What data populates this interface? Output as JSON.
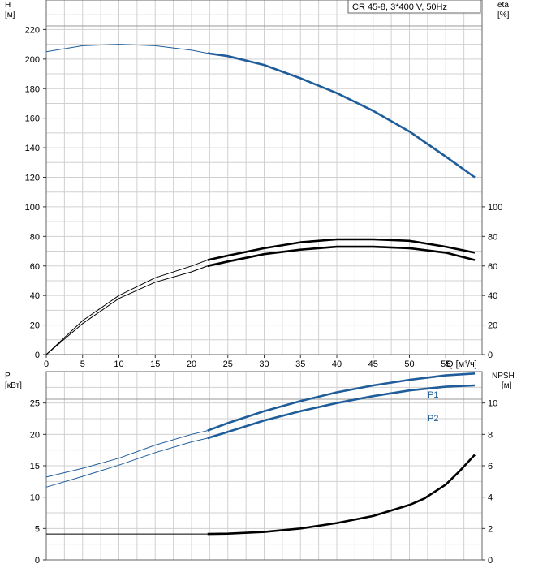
{
  "title": "CR 45-8, 3*400 V, 50Hz",
  "colors": {
    "blue": "#1f5d9a",
    "black": "#000000",
    "grid": "#d0d0d0"
  },
  "chart_data": [
    {
      "type": "line",
      "panel": "top",
      "xlabel": "Q [м³/ч]",
      "xlim": [
        0,
        60
      ],
      "x_ticks": [
        0,
        5,
        10,
        15,
        20,
        25,
        30,
        35,
        40,
        45,
        50,
        55
      ],
      "ylabel_left": "H",
      "ylabel_left_unit": "[м]",
      "ylim_left": [
        0,
        240
      ],
      "y_ticks_left": [
        0,
        20,
        40,
        60,
        80,
        100,
        120,
        140,
        160,
        180,
        200,
        220
      ],
      "ylabel_right": "eta",
      "ylabel_right_unit": "[%]",
      "ylim_right": [
        0,
        240
      ],
      "y_ticks_right": [
        0,
        20,
        40,
        60,
        80,
        100
      ],
      "grid": true,
      "series": [
        {
          "id": "H",
          "axis": "left",
          "color": "blue",
          "x": [
            0,
            5,
            10,
            15,
            20,
            22.2,
            25,
            30,
            35,
            40,
            45,
            50,
            55,
            59
          ],
          "y": [
            205,
            209,
            210,
            209,
            206,
            204,
            202,
            196,
            187,
            177,
            165,
            151,
            134,
            120
          ],
          "bold_from": 22.2
        },
        {
          "id": "eta_upper",
          "axis": "right",
          "color": "black",
          "x": [
            0,
            5,
            10,
            15,
            20,
            22.2,
            25,
            30,
            35,
            40,
            45,
            50,
            55,
            59
          ],
          "y": [
            0,
            23,
            40,
            52,
            60,
            64,
            67,
            72,
            76,
            78,
            78,
            77,
            73,
            69
          ],
          "bold_from": 22.2
        },
        {
          "id": "eta_lower",
          "axis": "right",
          "color": "black",
          "x": [
            0,
            5,
            10,
            15,
            20,
            22.2,
            25,
            30,
            35,
            40,
            45,
            50,
            55,
            59
          ],
          "y": [
            0,
            21,
            38,
            49,
            56,
            60,
            63,
            68,
            71,
            73,
            73,
            72,
            69,
            64
          ],
          "bold_from": 22.2
        }
      ]
    },
    {
      "type": "line",
      "panel": "bottom",
      "xlim": [
        0,
        60
      ],
      "ylabel_left": "P",
      "ylabel_left_unit": "[кВт]",
      "ylim_left": [
        0,
        30
      ],
      "y_ticks_left": [
        0,
        5,
        10,
        15,
        20,
        25
      ],
      "ylabel_right": "NPSH",
      "ylabel_right_unit": "[м]",
      "ylim_right": [
        0,
        12
      ],
      "y_ticks_right": [
        0,
        2,
        4,
        6,
        8,
        10
      ],
      "grid": true,
      "series": [
        {
          "id": "P1",
          "name": "P1",
          "axis": "left",
          "color": "blue",
          "x": [
            0,
            5,
            10,
            15,
            20,
            22.2,
            25,
            30,
            35,
            40,
            45,
            50,
            55,
            59
          ],
          "y": [
            13.2,
            14.6,
            16.2,
            18.3,
            20.0,
            20.6,
            21.8,
            23.7,
            25.3,
            26.7,
            27.8,
            28.7,
            29.4,
            29.7
          ],
          "bold_from": 22.2
        },
        {
          "id": "P2",
          "name": "P2",
          "axis": "left",
          "color": "blue",
          "x": [
            0,
            5,
            10,
            15,
            20,
            22.2,
            25,
            30,
            35,
            40,
            45,
            50,
            55,
            59
          ],
          "y": [
            11.6,
            13.3,
            15.1,
            17.1,
            18.8,
            19.4,
            20.4,
            22.2,
            23.7,
            25.0,
            26.1,
            27.0,
            27.6,
            27.8
          ],
          "bold_from": 22.2
        },
        {
          "id": "NPSH",
          "axis": "right",
          "color": "black",
          "x": [
            0,
            5,
            10,
            15,
            20,
            22.2,
            25,
            30,
            35,
            40,
            45,
            50,
            52,
            55,
            57,
            59
          ],
          "y": [
            1.65,
            1.65,
            1.65,
            1.65,
            1.65,
            1.65,
            1.67,
            1.78,
            2.0,
            2.35,
            2.8,
            3.5,
            3.9,
            4.8,
            5.7,
            6.7
          ],
          "bold_from": 22.2
        }
      ]
    }
  ]
}
